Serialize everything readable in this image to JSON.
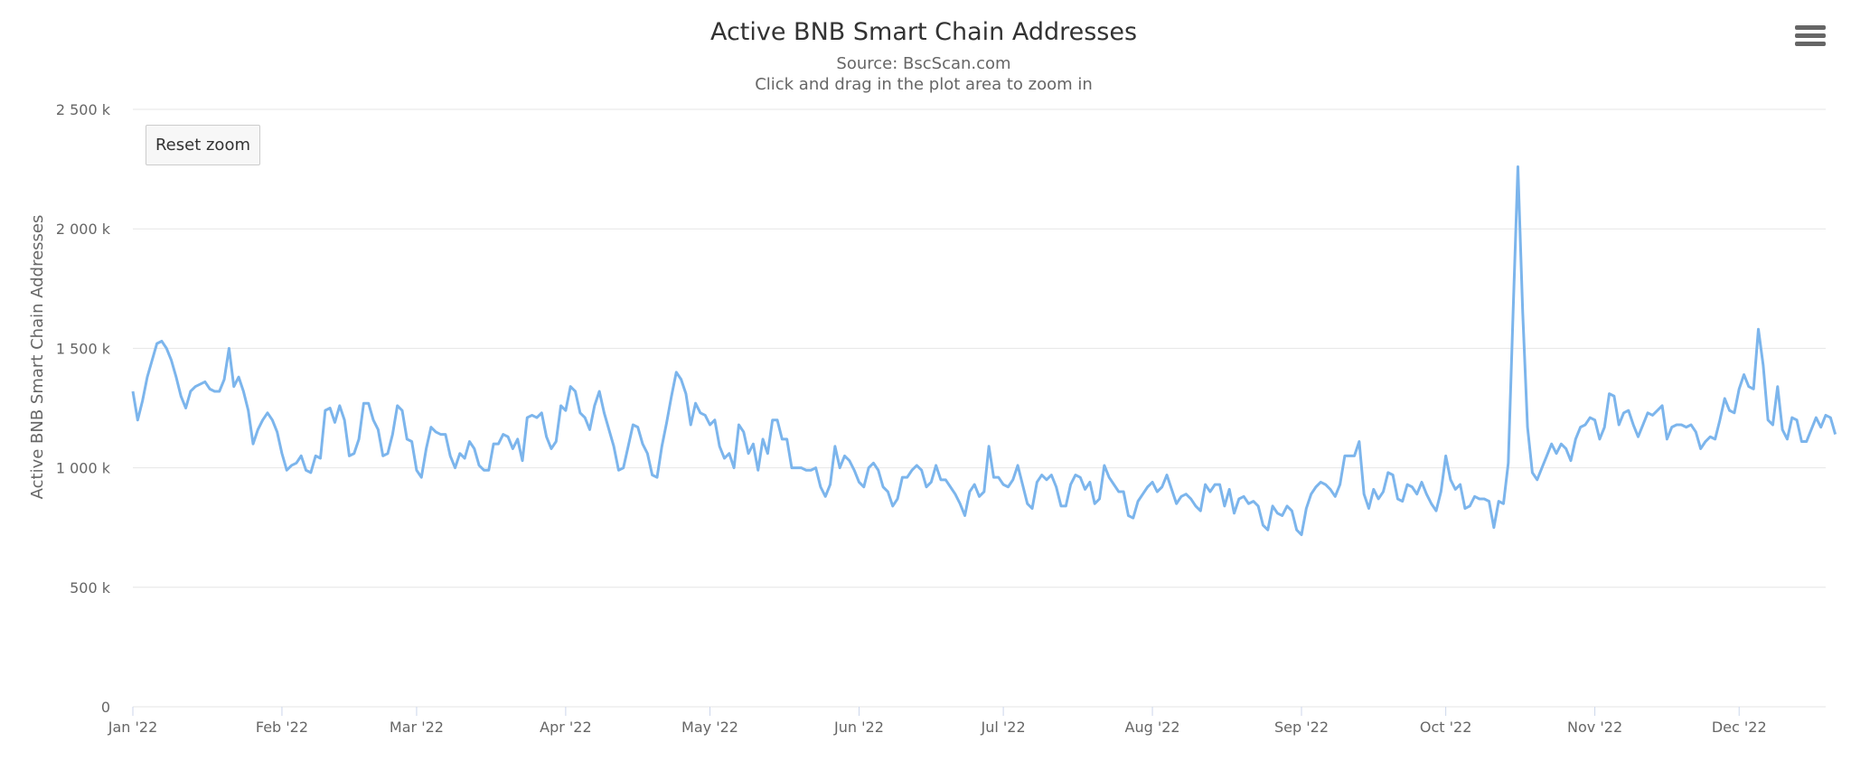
{
  "chart_data": {
    "type": "line",
    "title": "Active BNB Smart Chain Addresses",
    "subtitle": "Source: BscScan.com",
    "instruction": "Click and drag in the plot area to zoom in",
    "ylabel": "Active BNB Smart Chain Addresses",
    "xlabel": "",
    "ylim": [
      0,
      2500000
    ],
    "y_ticks": [
      "0",
      "500 k",
      "1 000 k",
      "1 500 k",
      "2 000 k",
      "2 500 k"
    ],
    "x_ticks": [
      "Jan '22",
      "Feb '22",
      "Mar '22",
      "Apr '22",
      "May '22",
      "Jun '22",
      "Jul '22",
      "Aug '22",
      "Sep '22",
      "Oct '22",
      "Nov '22",
      "Dec '22"
    ],
    "x_start": "2022-01-01",
    "x_end": "2022-12-19",
    "grid": true,
    "legend": false,
    "series_color": "#7cb5ec",
    "series": [
      {
        "values": [
          1320000,
          1200000,
          1280000,
          1380000,
          1450000,
          1520000,
          1530000,
          1500000,
          1450000,
          1380000,
          1300000,
          1250000,
          1320000,
          1340000,
          1350000,
          1360000,
          1330000,
          1320000,
          1320000,
          1370000,
          1500000,
          1340000,
          1380000,
          1320000,
          1240000,
          1100000,
          1160000,
          1200000,
          1230000,
          1200000,
          1150000,
          1060000,
          990000,
          1010000,
          1020000,
          1050000,
          990000,
          980000,
          1050000,
          1040000,
          1240000,
          1250000,
          1190000,
          1260000,
          1200000,
          1050000,
          1060000,
          1120000,
          1270000,
          1270000,
          1200000,
          1160000,
          1050000,
          1060000,
          1140000,
          1260000,
          1240000,
          1120000,
          1110000,
          990000,
          960000,
          1080000,
          1170000,
          1150000,
          1140000,
          1140000,
          1050000,
          1000000,
          1060000,
          1040000,
          1110000,
          1080000,
          1010000,
          990000,
          990000,
          1100000,
          1100000,
          1140000,
          1130000,
          1080000,
          1120000,
          1030000,
          1210000,
          1220000,
          1210000,
          1230000,
          1130000,
          1080000,
          1110000,
          1260000,
          1240000,
          1340000,
          1320000,
          1230000,
          1210000,
          1160000,
          1260000,
          1320000,
          1230000,
          1160000,
          1090000,
          990000,
          1000000,
          1090000,
          1180000,
          1170000,
          1100000,
          1060000,
          970000,
          960000,
          1090000,
          1190000,
          1300000,
          1400000,
          1370000,
          1310000,
          1180000,
          1270000,
          1230000,
          1220000,
          1180000,
          1200000,
          1090000,
          1040000,
          1060000,
          1000000,
          1180000,
          1150000,
          1060000,
          1100000,
          990000,
          1120000,
          1060000,
          1200000,
          1200000,
          1120000,
          1120000,
          1000000,
          1000000,
          1000000,
          990000,
          990000,
          1000000,
          920000,
          880000,
          930000,
          1090000,
          1000000,
          1050000,
          1030000,
          990000,
          940000,
          920000,
          1000000,
          1020000,
          990000,
          920000,
          900000,
          840000,
          870000,
          960000,
          960000,
          990000,
          1010000,
          990000,
          920000,
          940000,
          1010000,
          950000,
          950000,
          920000,
          890000,
          850000,
          800000,
          900000,
          930000,
          880000,
          900000,
          1090000,
          960000,
          960000,
          930000,
          920000,
          950000,
          1010000,
          930000,
          850000,
          830000,
          940000,
          970000,
          950000,
          970000,
          920000,
          840000,
          840000,
          930000,
          970000,
          960000,
          910000,
          940000,
          850000,
          870000,
          1010000,
          960000,
          930000,
          900000,
          900000,
          800000,
          790000,
          860000,
          890000,
          920000,
          940000,
          900000,
          920000,
          970000,
          910000,
          850000,
          880000,
          890000,
          870000,
          840000,
          820000,
          930000,
          900000,
          930000,
          930000,
          840000,
          910000,
          810000,
          870000,
          880000,
          850000,
          860000,
          840000,
          760000,
          740000,
          840000,
          810000,
          800000,
          840000,
          820000,
          740000,
          720000,
          830000,
          890000,
          920000,
          940000,
          930000,
          910000,
          880000,
          930000,
          1050000,
          1050000,
          1050000,
          1110000,
          890000,
          830000,
          910000,
          870000,
          900000,
          980000,
          970000,
          870000,
          860000,
          930000,
          920000,
          890000,
          940000,
          890000,
          850000,
          820000,
          900000,
          1050000,
          950000,
          910000,
          930000,
          830000,
          840000,
          880000,
          870000,
          870000,
          860000,
          750000,
          860000,
          850000,
          1020000,
          1650000,
          2260000,
          1650000,
          1170000,
          980000,
          950000,
          1000000,
          1050000,
          1100000,
          1060000,
          1100000,
          1080000,
          1030000,
          1120000,
          1170000,
          1180000,
          1210000,
          1200000,
          1120000,
          1170000,
          1310000,
          1300000,
          1180000,
          1230000,
          1240000,
          1180000,
          1130000,
          1180000,
          1230000,
          1220000,
          1240000,
          1260000,
          1120000,
          1170000,
          1180000,
          1180000,
          1170000,
          1180000,
          1150000,
          1080000,
          1110000,
          1130000,
          1120000,
          1200000,
          1290000,
          1240000,
          1230000,
          1330000,
          1390000,
          1340000,
          1330000,
          1580000,
          1430000,
          1200000,
          1180000,
          1340000,
          1160000,
          1120000,
          1210000,
          1200000,
          1110000,
          1110000,
          1160000,
          1210000,
          1170000,
          1220000,
          1210000,
          1140000
        ]
      }
    ]
  },
  "toolbar": {
    "reset_zoom_label": "Reset zoom"
  },
  "icons": {
    "menu": "hamburger-menu-icon"
  }
}
